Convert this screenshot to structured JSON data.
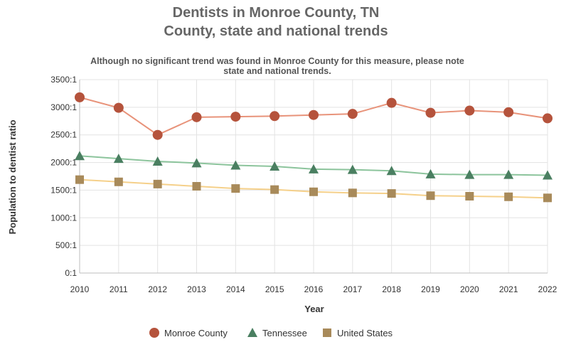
{
  "chart_data": {
    "type": "line",
    "title": [
      "Dentists in Monroe County, TN",
      "County, state and national trends"
    ],
    "subtitle": [
      "Although no significant trend was found in Monroe County for this measure, please note",
      "state and national trends."
    ],
    "xlabel": "Year",
    "ylabel": "Population to dentist ratio",
    "x": [
      "2010",
      "2011",
      "2012",
      "2013",
      "2014",
      "2015",
      "2016",
      "2017",
      "2018",
      "2019",
      "2020",
      "2021",
      "2022"
    ],
    "ylim": [
      0,
      3500
    ],
    "yticks": [
      {
        "value": 0,
        "label": "0:1"
      },
      {
        "value": 500,
        "label": "500:1"
      },
      {
        "value": 1000,
        "label": "1000:1"
      },
      {
        "value": 1500,
        "label": "1500:1"
      },
      {
        "value": 2000,
        "label": "2000:1"
      },
      {
        "value": 2500,
        "label": "2500:1"
      },
      {
        "value": 3000,
        "label": "3000:1"
      },
      {
        "value": 3500,
        "label": "3500:1"
      }
    ],
    "grid": true,
    "legend_position": "bottom",
    "series": [
      {
        "name": "Monroe County",
        "marker": "circle",
        "line_color": "#e8937a",
        "marker_color": "#b5533c",
        "values": [
          3180,
          2990,
          2500,
          2820,
          2830,
          2840,
          2860,
          2880,
          3080,
          2900,
          2940,
          2910,
          2800
        ]
      },
      {
        "name": "Tennessee",
        "marker": "triangle",
        "line_color": "#8cc49c",
        "marker_color": "#4a7f61",
        "values": [
          2120,
          2070,
          2020,
          1990,
          1950,
          1930,
          1880,
          1870,
          1850,
          1790,
          1780,
          1780,
          1770
        ]
      },
      {
        "name": "United States",
        "marker": "square",
        "line_color": "#f5d08a",
        "marker_color": "#a88a5a",
        "values": [
          1690,
          1650,
          1610,
          1570,
          1530,
          1510,
          1470,
          1450,
          1440,
          1400,
          1390,
          1380,
          1360
        ]
      }
    ]
  }
}
